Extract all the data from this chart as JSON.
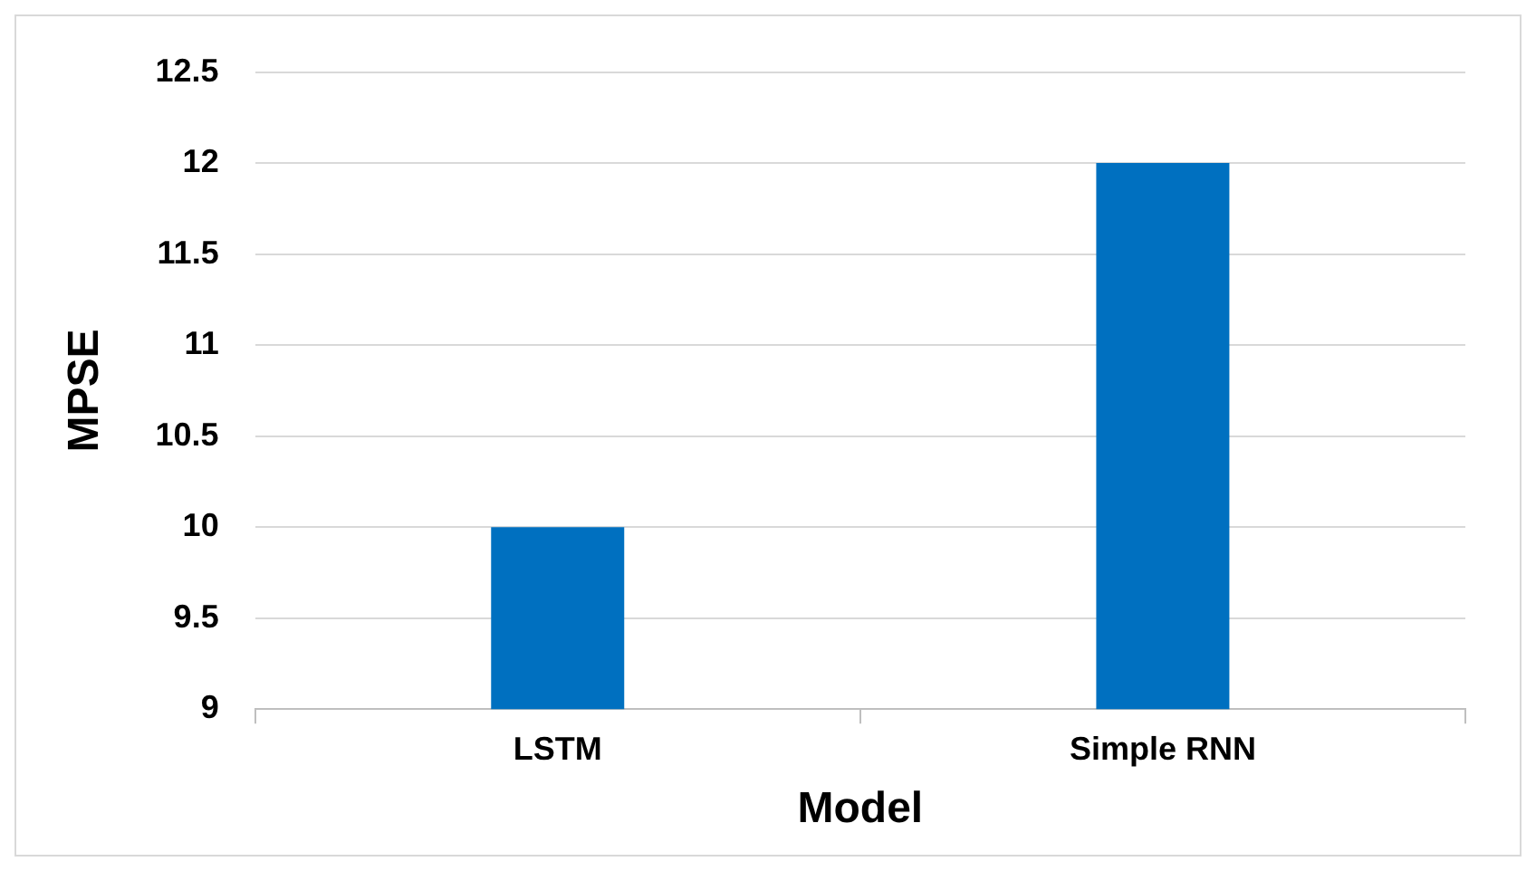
{
  "chart_data": {
    "type": "bar",
    "xlabel": "Model",
    "ylabel": "MPSE",
    "categories": [
      "LSTM",
      "Simple RNN"
    ],
    "values": [
      10,
      12
    ],
    "color": "#0070c0",
    "ylim": [
      9,
      12.5
    ],
    "yticks": [
      9,
      9.5,
      10,
      10.5,
      11,
      11.5,
      12,
      12.5
    ],
    "grid": "y"
  }
}
